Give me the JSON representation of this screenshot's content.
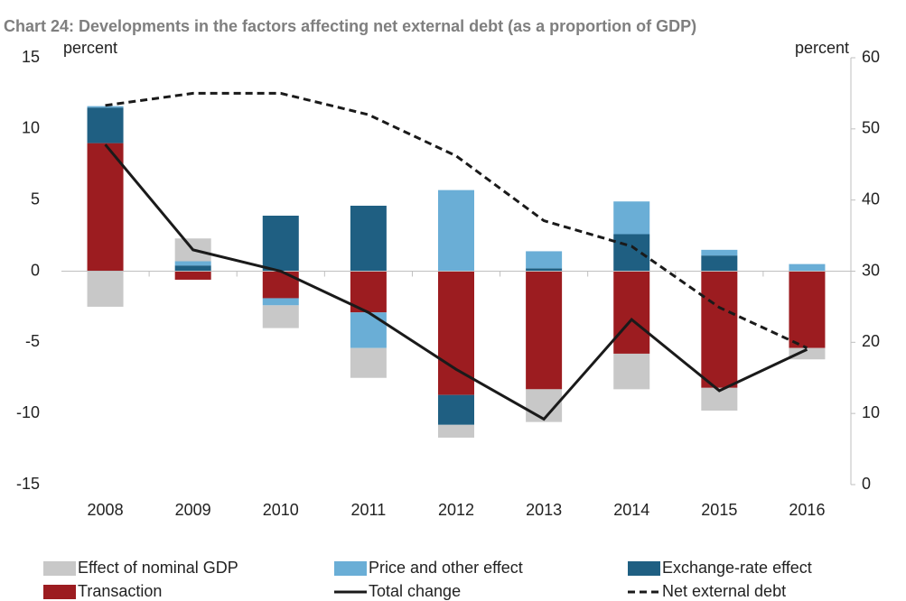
{
  "chart_data": {
    "type": "bar",
    "title": "Chart 24: Developments in the factors affecting net external debt (as a proportion of GDP)",
    "y_label": "percent",
    "y2_label": "percent",
    "categories": [
      "2008",
      "2009",
      "2010",
      "2011",
      "2012",
      "2013",
      "2014",
      "2015",
      "2016"
    ],
    "stacked": true,
    "series": [
      {
        "name": "Effect of nominal GDP",
        "type": "bar",
        "color": "#c8c8c8",
        "values": [
          -2.5,
          1.6,
          -1.6,
          -2.1,
          -0.9,
          -2.3,
          -2.5,
          -1.6,
          -0.8
        ]
      },
      {
        "name": "Price and other effect",
        "type": "bar",
        "color": "#6aaed6",
        "values": [
          0.1,
          0.3,
          -0.5,
          -2.5,
          5.7,
          1.2,
          2.3,
          0.4,
          0.5
        ]
      },
      {
        "name": "Exchange-rate effect",
        "type": "bar",
        "color": "#1f5f82",
        "values": [
          2.5,
          0.4,
          3.9,
          4.6,
          -2.1,
          0.2,
          2.6,
          1.1,
          0
        ]
      },
      {
        "name": "Transaction",
        "type": "bar",
        "color": "#9c1c20",
        "values": [
          9.0,
          -0.6,
          -1.9,
          -2.9,
          -8.7,
          -8.3,
          -5.8,
          -8.2,
          -5.4
        ]
      },
      {
        "name": "Total change",
        "type": "line",
        "color": "#1a1a1a",
        "values": [
          8.9,
          1.5,
          0.0,
          -2.9,
          -6.9,
          -10.4,
          -3.4,
          -8.4,
          -5.5
        ]
      },
      {
        "name": "Net external debt",
        "type": "line",
        "dashed": true,
        "axis": "y2",
        "color": "#1a1a1a",
        "values": [
          53.3,
          55.0,
          55.0,
          52.0,
          46.2,
          37.1,
          33.5,
          24.9,
          19.2
        ]
      }
    ],
    "ylim": [
      -15,
      15
    ],
    "yticks": [
      -15,
      -10,
      -5,
      0,
      5,
      10,
      15
    ],
    "y2lim": [
      0,
      60
    ],
    "y2ticks": [
      0,
      10,
      20,
      30,
      40,
      50,
      60
    ]
  }
}
